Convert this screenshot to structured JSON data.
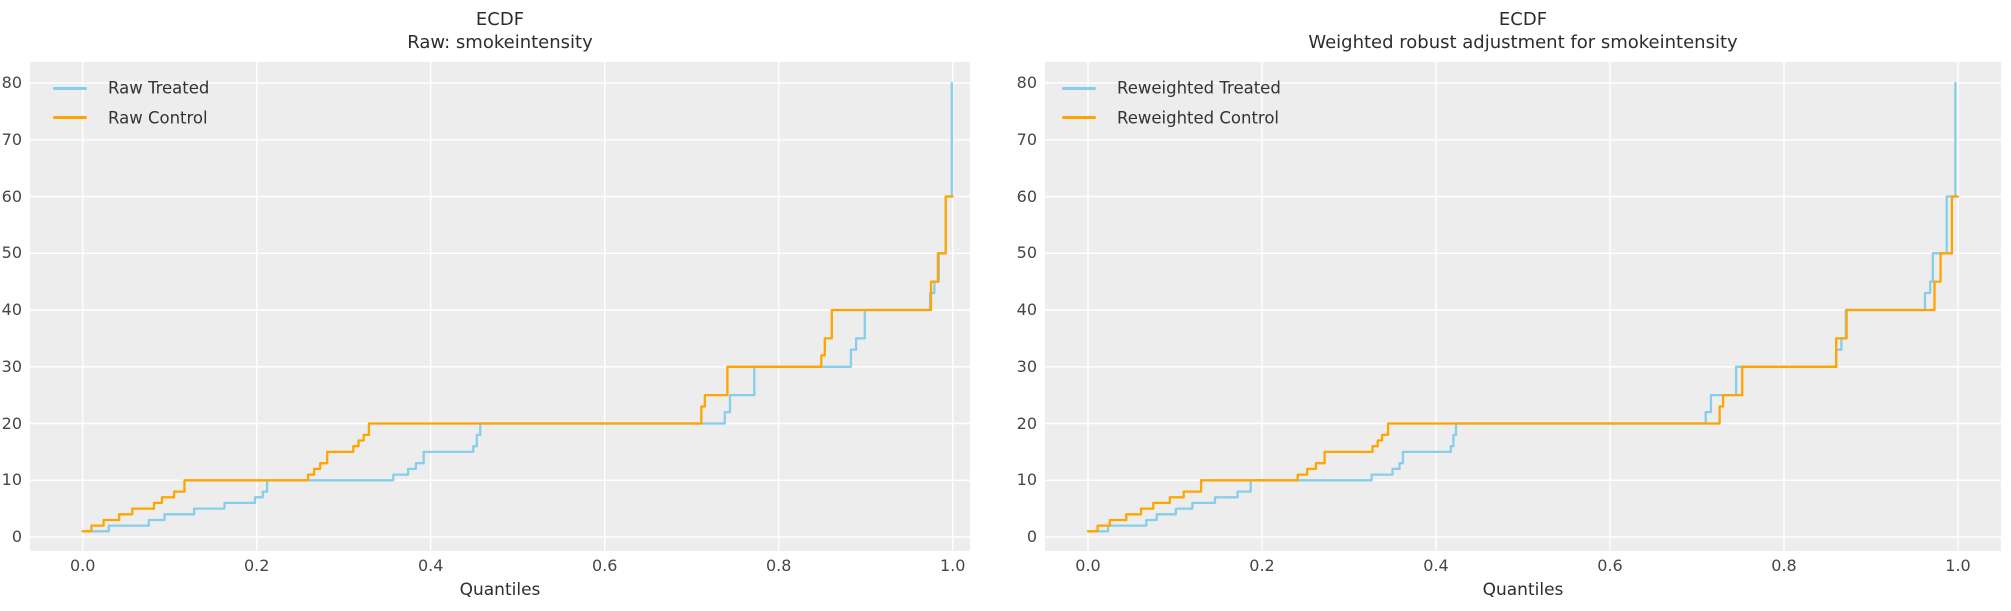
{
  "style": {
    "figure_background": "#ffffff",
    "axes_background": "#ededed",
    "grid_color": "#ffffff",
    "treated_color": "#87ceeb",
    "control_color": "#ffa500",
    "title_color": "#2d2d2d",
    "tick_color": "#464646"
  },
  "chart_data": [
    {
      "type": "line",
      "step_style": true,
      "title_line1": "ECDF",
      "title_line2": "Raw: smokeintensity",
      "xlabel": "Quantiles",
      "ylabel": "",
      "x_tick_values": [
        0.0,
        0.2,
        0.4,
        0.6,
        0.8,
        1.0
      ],
      "x_ticks": [
        "0.0",
        "0.2",
        "0.4",
        "0.6",
        "0.8",
        "1.0"
      ],
      "y_tick_values": [
        0,
        10,
        20,
        30,
        40,
        50,
        60,
        70,
        80
      ],
      "y_ticks": [
        "0",
        "10",
        "20",
        "30",
        "40",
        "50",
        "60",
        "70",
        "80"
      ],
      "xlim": [
        -0.05,
        1.05
      ],
      "ylim": [
        -3,
        84
      ],
      "grid": true,
      "legend_position": "upper left",
      "legend": [
        "Raw Treated",
        "Raw Control"
      ],
      "series": [
        {
          "name": "Raw Treated",
          "color_key": "treated",
          "points": [
            [
              0,
              1
            ],
            [
              0.03,
              2
            ],
            [
              0.076,
              3
            ],
            [
              0.094,
              4
            ],
            [
              0.128,
              5
            ],
            [
              0.163,
              6
            ],
            [
              0.198,
              7
            ],
            [
              0.207,
              8
            ],
            [
              0.212,
              10
            ],
            [
              0.357,
              11
            ],
            [
              0.374,
              12
            ],
            [
              0.383,
              13
            ],
            [
              0.392,
              15
            ],
            [
              0.449,
              16
            ],
            [
              0.453,
              18
            ],
            [
              0.457,
              20
            ],
            [
              0.738,
              22
            ],
            [
              0.744,
              25
            ],
            [
              0.772,
              30
            ],
            [
              0.883,
              33
            ],
            [
              0.889,
              35
            ],
            [
              0.899,
              40
            ],
            [
              0.974,
              43
            ],
            [
              0.979,
              45
            ],
            [
              0.984,
              50
            ],
            [
              0.992,
              60
            ],
            [
              0.999,
              80
            ]
          ]
        },
        {
          "name": "Raw Control",
          "color_key": "control",
          "points": [
            [
              0,
              1
            ],
            [
              0.01,
              2
            ],
            [
              0.024,
              3
            ],
            [
              0.042,
              4
            ],
            [
              0.057,
              5
            ],
            [
              0.082,
              6
            ],
            [
              0.091,
              7
            ],
            [
              0.105,
              8
            ],
            [
              0.117,
              10
            ],
            [
              0.259,
              11
            ],
            [
              0.266,
              12
            ],
            [
              0.273,
              13
            ],
            [
              0.281,
              15
            ],
            [
              0.311,
              16
            ],
            [
              0.317,
              17
            ],
            [
              0.323,
              18
            ],
            [
              0.329,
              20
            ],
            [
              0.711,
              23
            ],
            [
              0.715,
              25
            ],
            [
              0.741,
              30
            ],
            [
              0.849,
              32
            ],
            [
              0.853,
              35
            ],
            [
              0.861,
              40
            ],
            [
              0.975,
              45
            ],
            [
              0.983,
              50
            ],
            [
              0.992,
              60
            ],
            [
              1,
              60
            ]
          ]
        }
      ]
    },
    {
      "type": "line",
      "step_style": true,
      "title_line1": "ECDF",
      "title_line2": "Weighted robust adjustment for smokeintensity",
      "xlabel": "Quantiles",
      "ylabel": "",
      "x_tick_values": [
        0.0,
        0.2,
        0.4,
        0.6,
        0.8,
        1.0
      ],
      "x_ticks": [
        "0.0",
        "0.2",
        "0.4",
        "0.6",
        "0.8",
        "1.0"
      ],
      "y_tick_values": [
        0,
        10,
        20,
        30,
        40,
        50,
        60,
        70,
        80
      ],
      "y_ticks": [
        "0",
        "10",
        "20",
        "30",
        "40",
        "50",
        "60",
        "70",
        "80"
      ],
      "xlim": [
        -0.05,
        1.05
      ],
      "ylim": [
        -3,
        84
      ],
      "grid": true,
      "legend_position": "upper left",
      "legend": [
        "Reweighted Treated",
        "Reweighted Control"
      ],
      "series": [
        {
          "name": "Reweighted Treated",
          "color_key": "treated",
          "points": [
            [
              0,
              1
            ],
            [
              0.023,
              2
            ],
            [
              0.067,
              3
            ],
            [
              0.079,
              4
            ],
            [
              0.101,
              5
            ],
            [
              0.12,
              6
            ],
            [
              0.146,
              7
            ],
            [
              0.172,
              8
            ],
            [
              0.187,
              10
            ],
            [
              0.326,
              11
            ],
            [
              0.35,
              12
            ],
            [
              0.358,
              13
            ],
            [
              0.362,
              15
            ],
            [
              0.417,
              16
            ],
            [
              0.42,
              18
            ],
            [
              0.423,
              20
            ],
            [
              0.71,
              22
            ],
            [
              0.716,
              25
            ],
            [
              0.745,
              30
            ],
            [
              0.86,
              33
            ],
            [
              0.866,
              35
            ],
            [
              0.871,
              40
            ],
            [
              0.962,
              43
            ],
            [
              0.968,
              45
            ],
            [
              0.971,
              50
            ],
            [
              0.987,
              60
            ],
            [
              0.997,
              80
            ]
          ]
        },
        {
          "name": "Reweighted Control",
          "color_key": "control",
          "points": [
            [
              0,
              1
            ],
            [
              0.011,
              2
            ],
            [
              0.025,
              3
            ],
            [
              0.044,
              4
            ],
            [
              0.061,
              5
            ],
            [
              0.075,
              6
            ],
            [
              0.094,
              7
            ],
            [
              0.11,
              8
            ],
            [
              0.13,
              10
            ],
            [
              0.241,
              11
            ],
            [
              0.252,
              12
            ],
            [
              0.262,
              13
            ],
            [
              0.272,
              15
            ],
            [
              0.327,
              16
            ],
            [
              0.333,
              17
            ],
            [
              0.338,
              18
            ],
            [
              0.345,
              20
            ],
            [
              0.726,
              23
            ],
            [
              0.73,
              25
            ],
            [
              0.752,
              30
            ],
            [
              0.86,
              35
            ],
            [
              0.872,
              40
            ],
            [
              0.973,
              45
            ],
            [
              0.98,
              50
            ],
            [
              0.993,
              60
            ],
            [
              1,
              60
            ]
          ]
        }
      ]
    }
  ]
}
